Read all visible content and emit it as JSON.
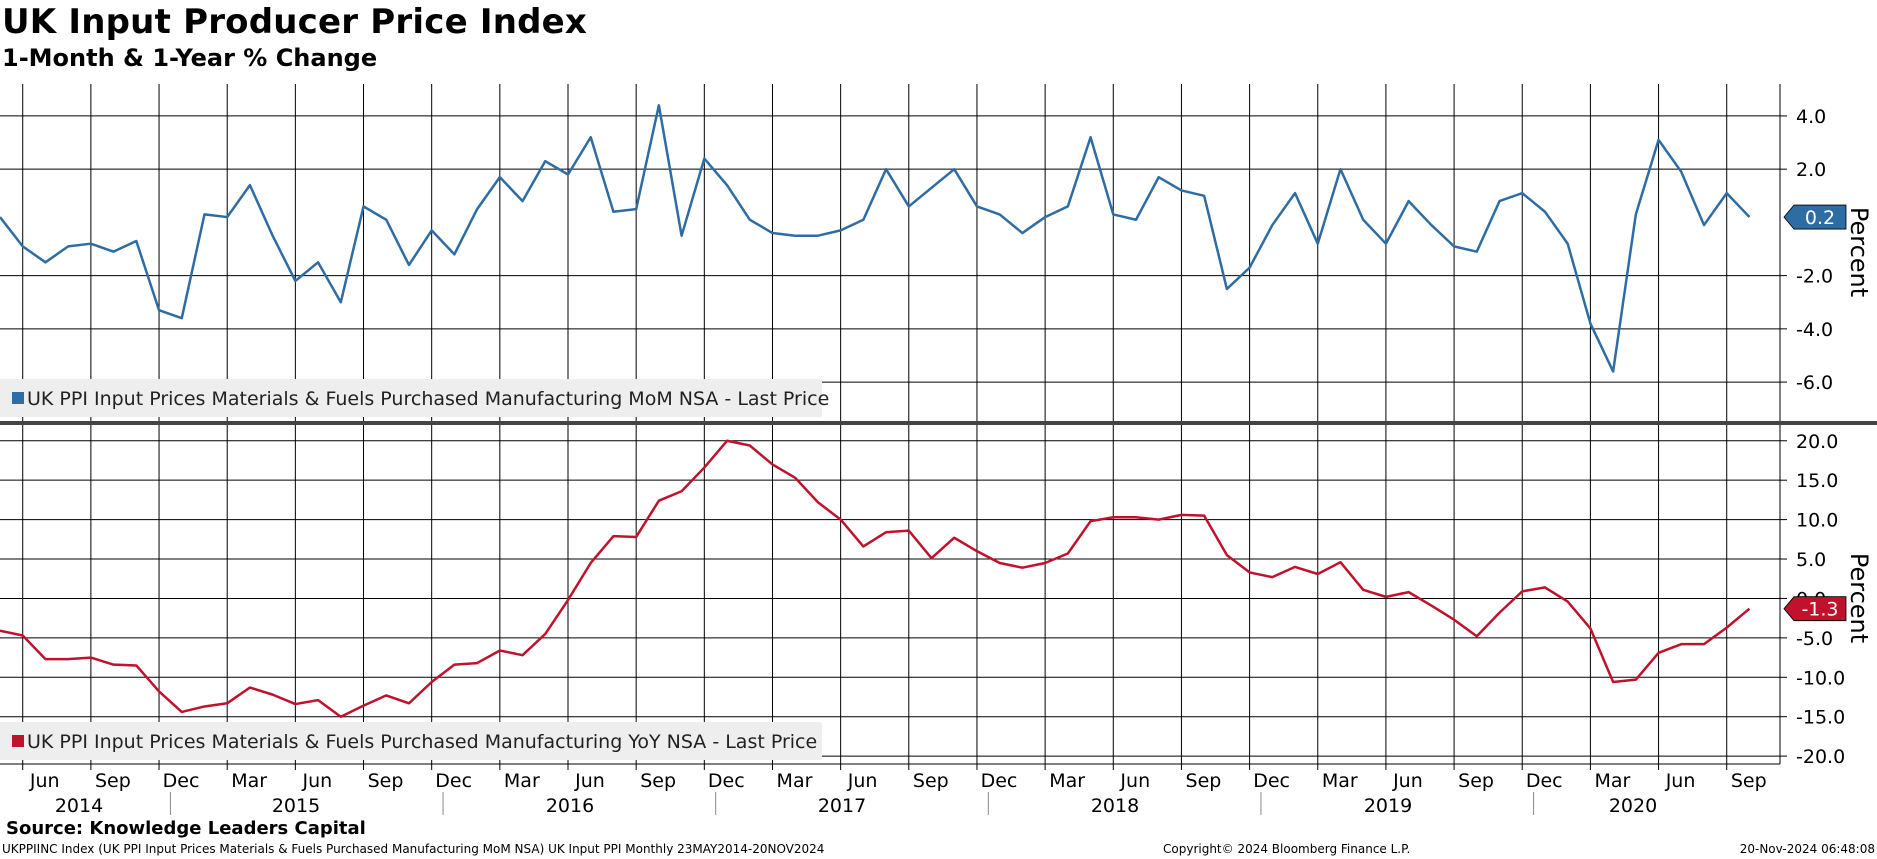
{
  "header": {
    "title": "UK Input Producer Price Index",
    "subtitle": "1-Month & 1-Year % Change"
  },
  "footer": {
    "source": "Source: Knowledge Leaders Capital",
    "ticker_line": "UKPPIINC Index (UK PPI Input Prices Materials & Fuels Purchased Manufacturing MoM NSA) UK Input PPI  Monthly 23MAY2014-20NOV2024",
    "copyright": "Copyright© 2024 Bloomberg Finance L.P.",
    "timestamp": "20-Nov-2024 06:48:08"
  },
  "colors": {
    "mom": "#2e6ca4",
    "yoy": "#c0122c",
    "grid": "#000000",
    "legend_bg": "#eeeeee"
  },
  "chart_data": [
    {
      "type": "line",
      "name": "mom",
      "title": "1-Month % Change",
      "ylabel": "Percent",
      "ylim": [
        -7.5,
        5.2
      ],
      "yticks": [
        4.0,
        2.0,
        -2.0,
        -4.0,
        -6.0
      ],
      "ytick_labels": [
        "4.0",
        "2.0",
        "-2.0",
        "-4.0",
        "-6.0"
      ],
      "grid": true,
      "legend": "UK PPI Input Prices Materials & Fuels Purchased Manufacturing MoM NSA - Last Price",
      "legend_position": "bottom-left",
      "last_value_label": "0.2",
      "x_start": "2014-05",
      "series": [
        {
          "name": "UK PPI Input Prices Materials & Fuels Purchased Manufacturing MoM NSA - Last Price",
          "values": [
            0.2,
            -0.9,
            -1.5,
            -0.9,
            -0.8,
            -1.1,
            -0.7,
            -3.3,
            -3.6,
            0.3,
            0.2,
            1.4,
            -0.5,
            -2.2,
            -1.5,
            -3.0,
            0.6,
            0.1,
            -1.6,
            -0.3,
            -1.2,
            0.5,
            1.7,
            0.8,
            2.3,
            1.8,
            3.2,
            0.4,
            0.5,
            4.4,
            -0.5,
            2.4,
            1.4,
            0.1,
            -0.4,
            -0.5,
            -0.5,
            -0.3,
            0.1,
            2.0,
            0.6,
            1.3,
            2.0,
            0.6,
            0.3,
            -0.4,
            0.2,
            0.6,
            3.2,
            0.3,
            0.1,
            1.7,
            1.2,
            1.0,
            -2.5,
            -1.7,
            -0.1,
            1.1,
            -0.8,
            2.0,
            0.1,
            -0.8,
            0.8,
            -0.1,
            -0.9,
            -1.1,
            0.8,
            1.1,
            0.4,
            -0.8,
            -3.8,
            -5.6,
            0.3,
            3.1,
            1.9,
            -0.1,
            1.1,
            0.2
          ]
        }
      ]
    },
    {
      "type": "line",
      "name": "yoy",
      "title": "1-Year % Change",
      "ylabel": "Percent",
      "ylim": [
        -21,
        22
      ],
      "yticks": [
        20.0,
        15.0,
        10.0,
        5.0,
        0.0,
        -5.0,
        -10.0,
        -15.0,
        -20.0
      ],
      "ytick_labels": [
        "20.0",
        "15.0",
        "10.0",
        "5.0",
        "0.0",
        "-5.0",
        "-10.0",
        "-15.0",
        "-20.0"
      ],
      "grid": true,
      "legend": "UK PPI Input Prices Materials & Fuels Purchased Manufacturing YoY NSA - Last Price",
      "legend_position": "bottom-left",
      "last_value_label": "-1.3",
      "x_start": "2014-05",
      "series": [
        {
          "name": "UK PPI Input Prices Materials & Fuels Purchased Manufacturing YoY NSA - Last Price",
          "values": [
            -4.1,
            -4.7,
            -7.7,
            -7.7,
            -7.5,
            -8.4,
            -8.5,
            -11.8,
            -14.4,
            -13.7,
            -13.3,
            -11.3,
            -12.2,
            -13.4,
            -12.9,
            -15.0,
            -13.6,
            -12.3,
            -13.3,
            -10.6,
            -8.4,
            -8.2,
            -6.6,
            -7.2,
            -4.5,
            -0.2,
            4.5,
            7.9,
            7.8,
            12.4,
            13.6,
            16.6,
            20.0,
            19.4,
            17.0,
            15.3,
            12.2,
            10.0,
            6.6,
            8.4,
            8.6,
            5.1,
            7.7,
            6.0,
            4.5,
            3.9,
            4.5,
            5.7,
            9.8,
            10.3,
            10.3,
            10.0,
            10.6,
            10.5,
            5.5,
            3.3,
            2.7,
            4.0,
            3.1,
            4.6,
            1.1,
            0.2,
            0.8,
            -0.9,
            -2.7,
            -4.8,
            -1.8,
            0.9,
            1.4,
            -0.4,
            -3.8,
            -10.6,
            -10.3,
            -6.9,
            -5.8,
            -5.8,
            -3.7,
            -1.3
          ]
        }
      ]
    }
  ],
  "x_axis": {
    "month_labels": [
      "Jun",
      "Sep",
      "Dec",
      "Mar",
      "Jun",
      "Sep",
      "Dec",
      "Mar",
      "Jun",
      "Sep",
      "Dec",
      "Mar",
      "Jun",
      "Sep",
      "Dec",
      "Mar",
      "Jun",
      "Sep",
      "Dec",
      "Mar",
      "Jun",
      "Sep",
      "Dec",
      "Mar",
      "Jun",
      "Sep"
    ],
    "year_labels": [
      "2014",
      "2015",
      "2016",
      "2017",
      "2018",
      "2019",
      "2020"
    ]
  }
}
